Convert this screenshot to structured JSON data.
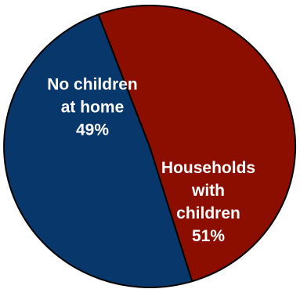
{
  "chart_data": {
    "type": "pie",
    "categories": [
      "No children at home",
      "Households with children"
    ],
    "values": [
      49,
      51
    ],
    "colors": [
      "#08386b",
      "#8b0e00"
    ],
    "labels": [
      [
        "No children",
        "at home",
        "49%"
      ],
      [
        "Households",
        "with",
        "children",
        "51%"
      ]
    ],
    "title": ""
  }
}
